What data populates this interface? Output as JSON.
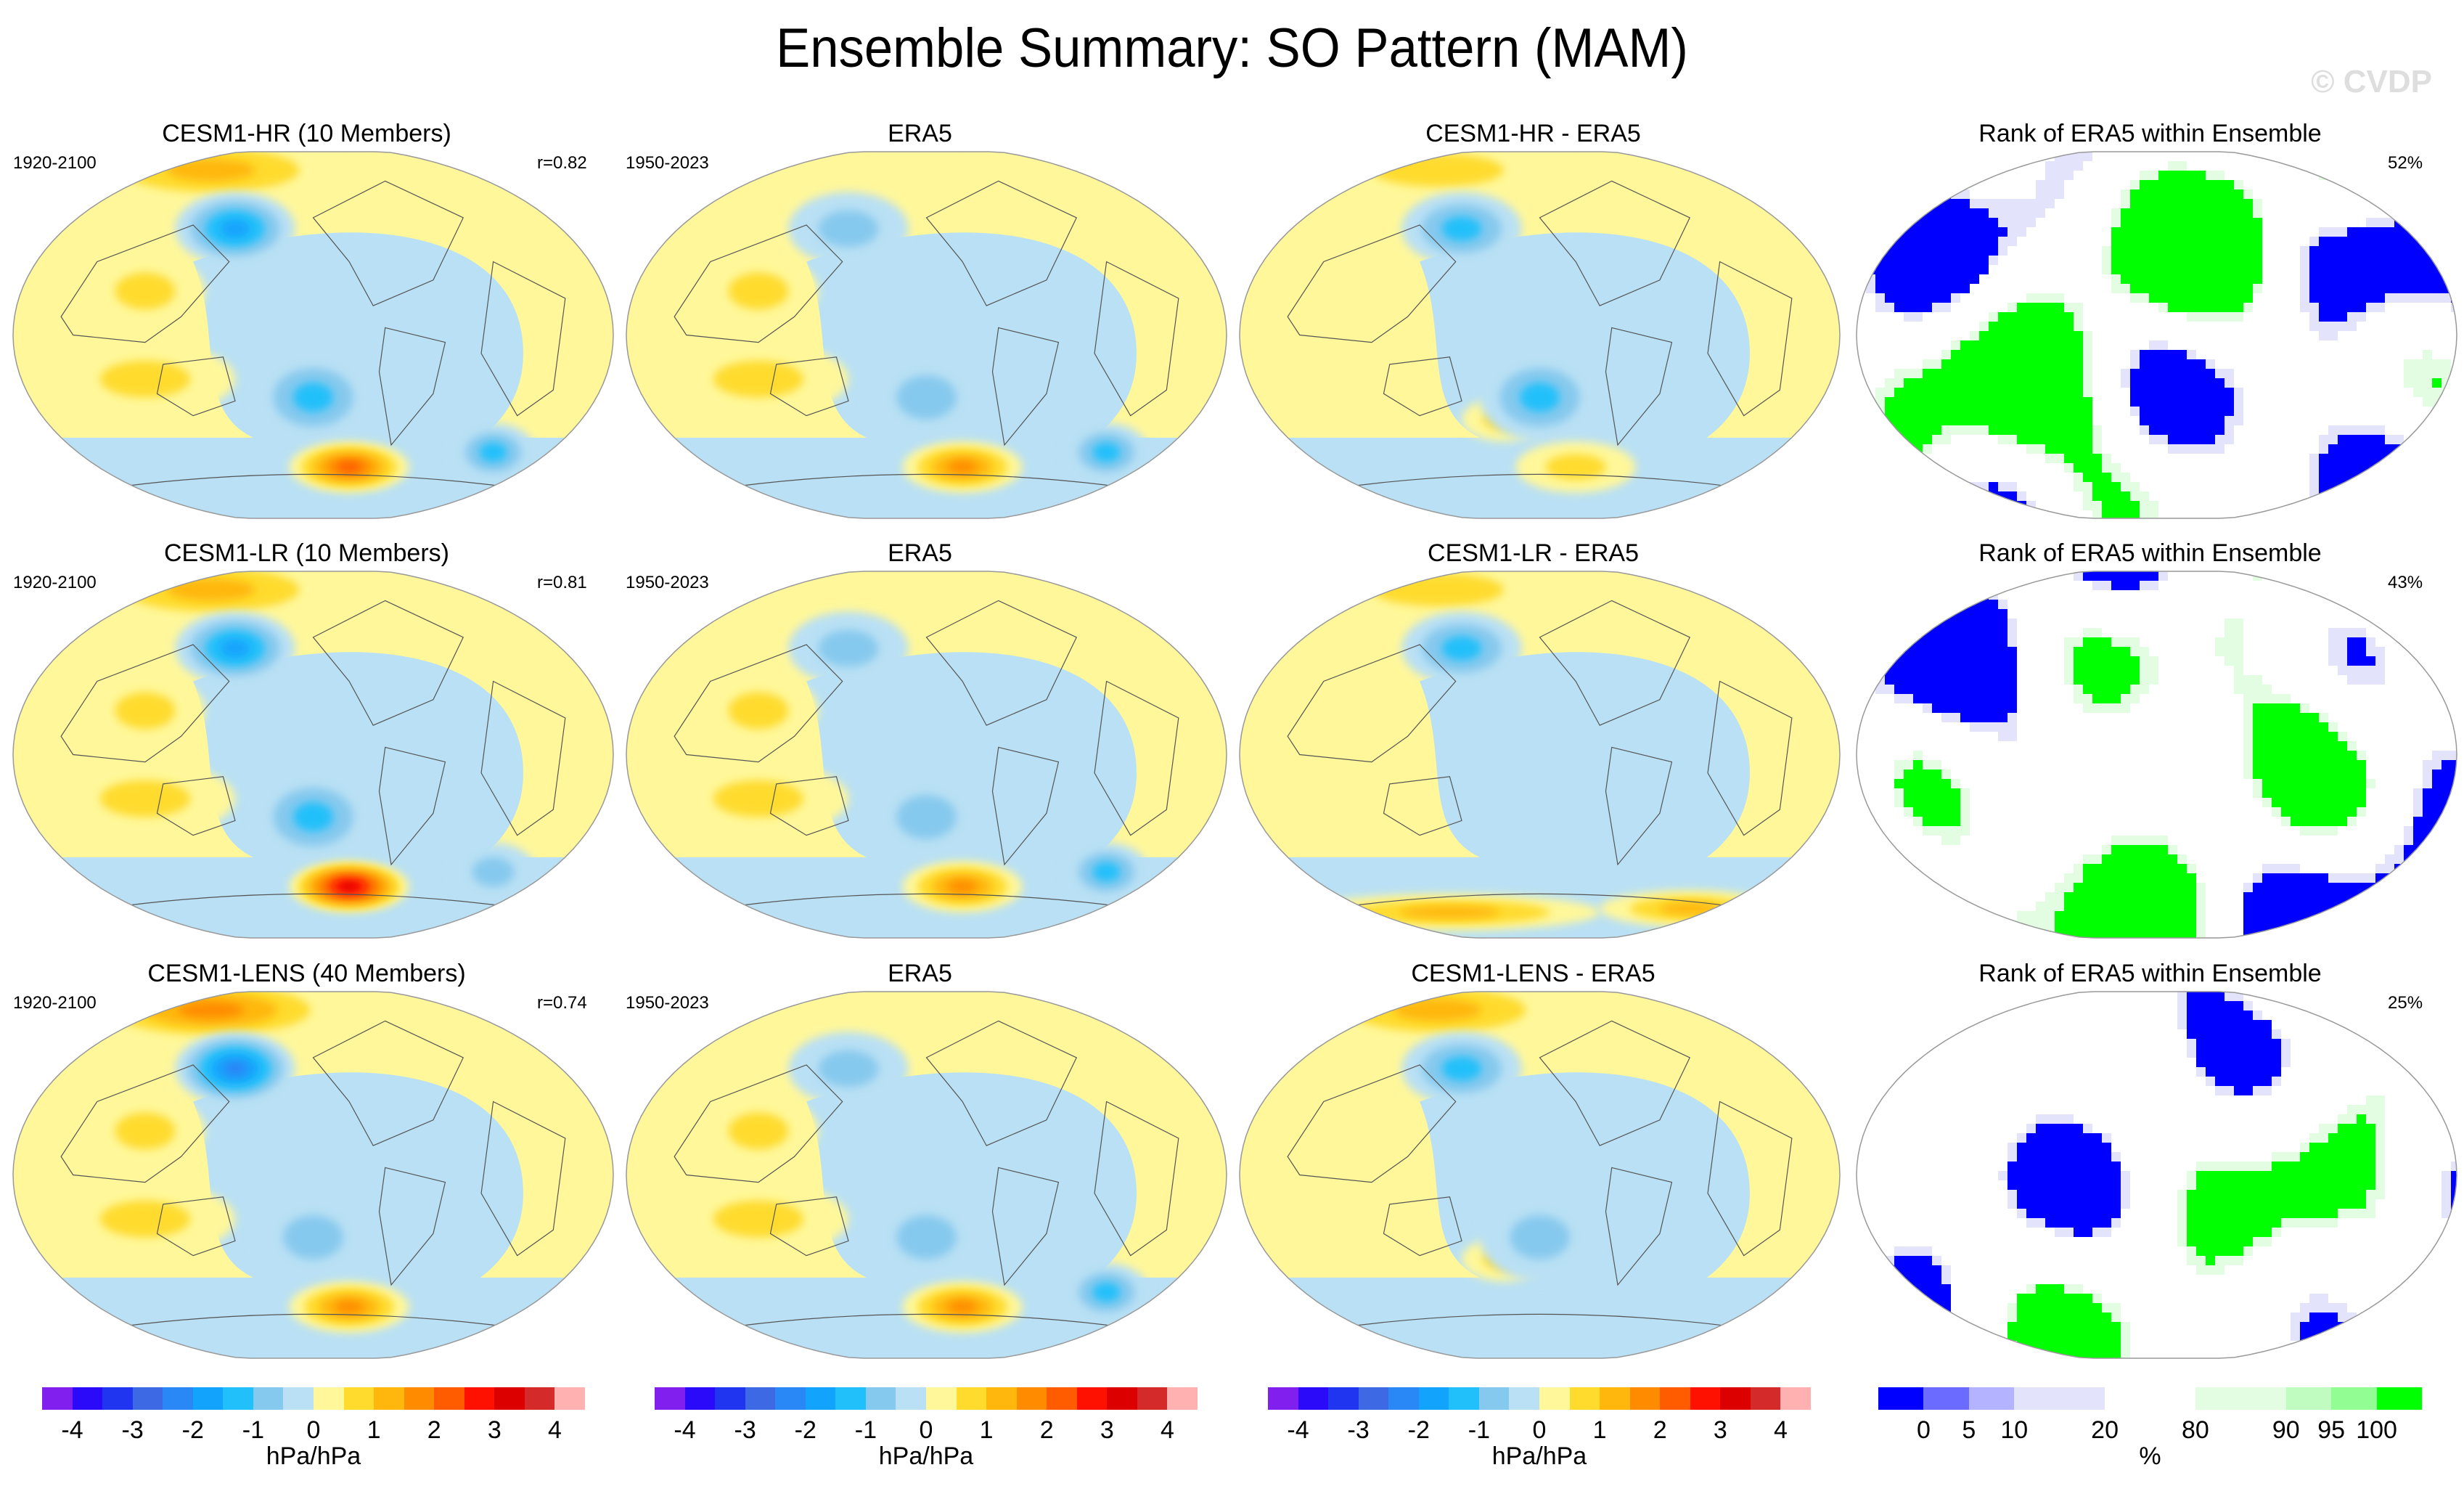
{
  "title": "Ensemble Summary: SO Pattern (MAM)",
  "watermark": "© CVDP",
  "rows": [
    {
      "model_title": "CESM1-HR (10 Members)",
      "model_period": "1920-2100",
      "pattern_correlation": "r=0.82",
      "obs_title": "ERA5",
      "obs_period": "1950-2023",
      "diff_title": "CESM1-HR - ERA5",
      "rank_title": "Rank of ERA5 within Ensemble",
      "rank_percent": "52%"
    },
    {
      "model_title": "CESM1-LR (10 Members)",
      "model_period": "1920-2100",
      "pattern_correlation": "r=0.81",
      "obs_title": "ERA5",
      "obs_period": "1950-2023",
      "diff_title": "CESM1-LR - ERA5",
      "rank_title": "Rank of ERA5 within Ensemble",
      "rank_percent": "43%"
    },
    {
      "model_title": "CESM1-LENS (40 Members)",
      "model_period": "1920-2100",
      "pattern_correlation": "r=0.74",
      "obs_title": "ERA5",
      "obs_period": "1950-2023",
      "diff_title": "CESM1-LENS - ERA5",
      "rank_title": "Rank of ERA5 within Ensemble",
      "rank_percent": "25%"
    }
  ],
  "chart_data": [
    {
      "type": "heatmap",
      "description": "Global SLP regression maps (MAM Southern Oscillation pattern) in 3 rows x 4 columns",
      "columns": [
        "model ensemble mean",
        "observations",
        "model minus observations",
        "rank of observations within ensemble"
      ],
      "pattern_colorbar": {
        "unit": "hPa/hPa",
        "tick_labels": [
          "-4",
          "-3",
          "-2",
          "-1",
          "0",
          "1",
          "2",
          "3",
          "4"
        ],
        "levels": [
          -4,
          -3.5,
          -3,
          -2.5,
          -2,
          -1.5,
          -1,
          -0.5,
          0,
          0.5,
          1,
          1.5,
          2,
          2.5,
          3,
          3.5,
          4
        ],
        "colors": [
          "#8120ee",
          "#2a0af8",
          "#1f35ef",
          "#3d69e5",
          "#2a87f6",
          "#12a4fc",
          "#22c0fa",
          "#86c9ee",
          "#b9e0f4",
          "#fff79a",
          "#ffdb2e",
          "#ffb70e",
          "#ff8c00",
          "#ff5c00",
          "#ff1100",
          "#dd0000",
          "#d42a2a",
          "#ffb0b0"
        ]
      },
      "rank_colorbar": {
        "unit": "%",
        "tick_labels": [
          "0",
          "5",
          "10",
          "20",
          "80",
          "90",
          "95",
          "100"
        ],
        "levels": [
          0,
          5,
          10,
          20,
          80,
          90,
          95,
          100
        ],
        "colors": [
          "#0000ff",
          "#6b6bff",
          "#b3b3ff",
          "#e3e3fc",
          "#ffffff",
          "#e3fde3",
          "#c0fbc0",
          "#92fd92",
          "#00ff00"
        ]
      },
      "panels": [
        {
          "row": 1,
          "col": 1,
          "title": "CESM1-HR (10 Members)",
          "period": "1920-2100",
          "r": 0.82,
          "features": {
            "arctic": 1.5,
            "north_pacific_low": -2.0,
            "australia_high": 0.8,
            "south_pacific_low": -1.2,
            "amundsen_high": 2.3,
            "south_atlantic_low": -1.3
          }
        },
        {
          "row": 1,
          "col": 2,
          "title": "ERA5",
          "period": "1950-2023",
          "features": {
            "arctic": 0.3,
            "north_pacific_low": -0.8,
            "australia_high": 0.8,
            "south_pacific_low": -1.0,
            "amundsen_high": 2.0,
            "south_atlantic_low": -1.2
          }
        },
        {
          "row": 1,
          "col": 3,
          "title": "CESM1-HR - ERA5",
          "features": {
            "arctic": 0.8,
            "north_pacific_low": -1.3,
            "nz_high": 0.9,
            "south_pacific_low": -1.2,
            "amundsen_high": 1.0
          }
        },
        {
          "row": 1,
          "col": 4,
          "title": "Rank of ERA5 within Ensemble",
          "percent_in_range": 52
        },
        {
          "row": 2,
          "col": 1,
          "title": "CESM1-LR (10 Members)",
          "period": "1920-2100",
          "r": 0.81,
          "features": {
            "arctic": 1.2,
            "north_pacific_low": -1.8,
            "australia_high": 0.8,
            "south_pacific_low": -1.2,
            "amundsen_high": 3.2,
            "south_atlantic_low": -0.8
          }
        },
        {
          "row": 2,
          "col": 2,
          "title": "ERA5",
          "period": "1950-2023",
          "features": {
            "arctic": 0.3,
            "north_pacific_low": -0.8,
            "australia_high": 0.8,
            "south_pacific_low": -1.0,
            "amundsen_high": 2.0,
            "south_atlantic_low": -1.2
          }
        },
        {
          "row": 2,
          "col": 3,
          "title": "CESM1-LR - ERA5",
          "features": {
            "arctic": 0.8,
            "north_pacific_low": -1.3,
            "antarctic_coast_high": 1.2
          }
        },
        {
          "row": 2,
          "col": 4,
          "title": "Rank of ERA5 within Ensemble",
          "percent_in_range": 43
        },
        {
          "row": 3,
          "col": 1,
          "title": "CESM1-LENS (40 Members)",
          "period": "1920-2100",
          "r": 0.74,
          "features": {
            "arctic": 2.0,
            "north_pacific_low": -2.2,
            "australia_high": 0.8,
            "south_pacific_low": -0.8,
            "amundsen_high": 1.8
          }
        },
        {
          "row": 3,
          "col": 2,
          "title": "ERA5",
          "period": "1950-2023",
          "features": {
            "arctic": 0.3,
            "north_pacific_low": -0.8,
            "australia_high": 0.8,
            "south_pacific_low": -1.0,
            "amundsen_high": 2.0,
            "south_atlantic_low": -1.2
          }
        },
        {
          "row": 3,
          "col": 3,
          "title": "CESM1-LENS - ERA5",
          "features": {
            "arctic": 1.5,
            "north_pacific_low": -1.3,
            "nz_high": 0.8,
            "south_pacific_low": -1.0
          }
        },
        {
          "row": 3,
          "col": 4,
          "title": "Rank of ERA5 within Ensemble",
          "percent_in_range": 25
        }
      ]
    }
  ]
}
